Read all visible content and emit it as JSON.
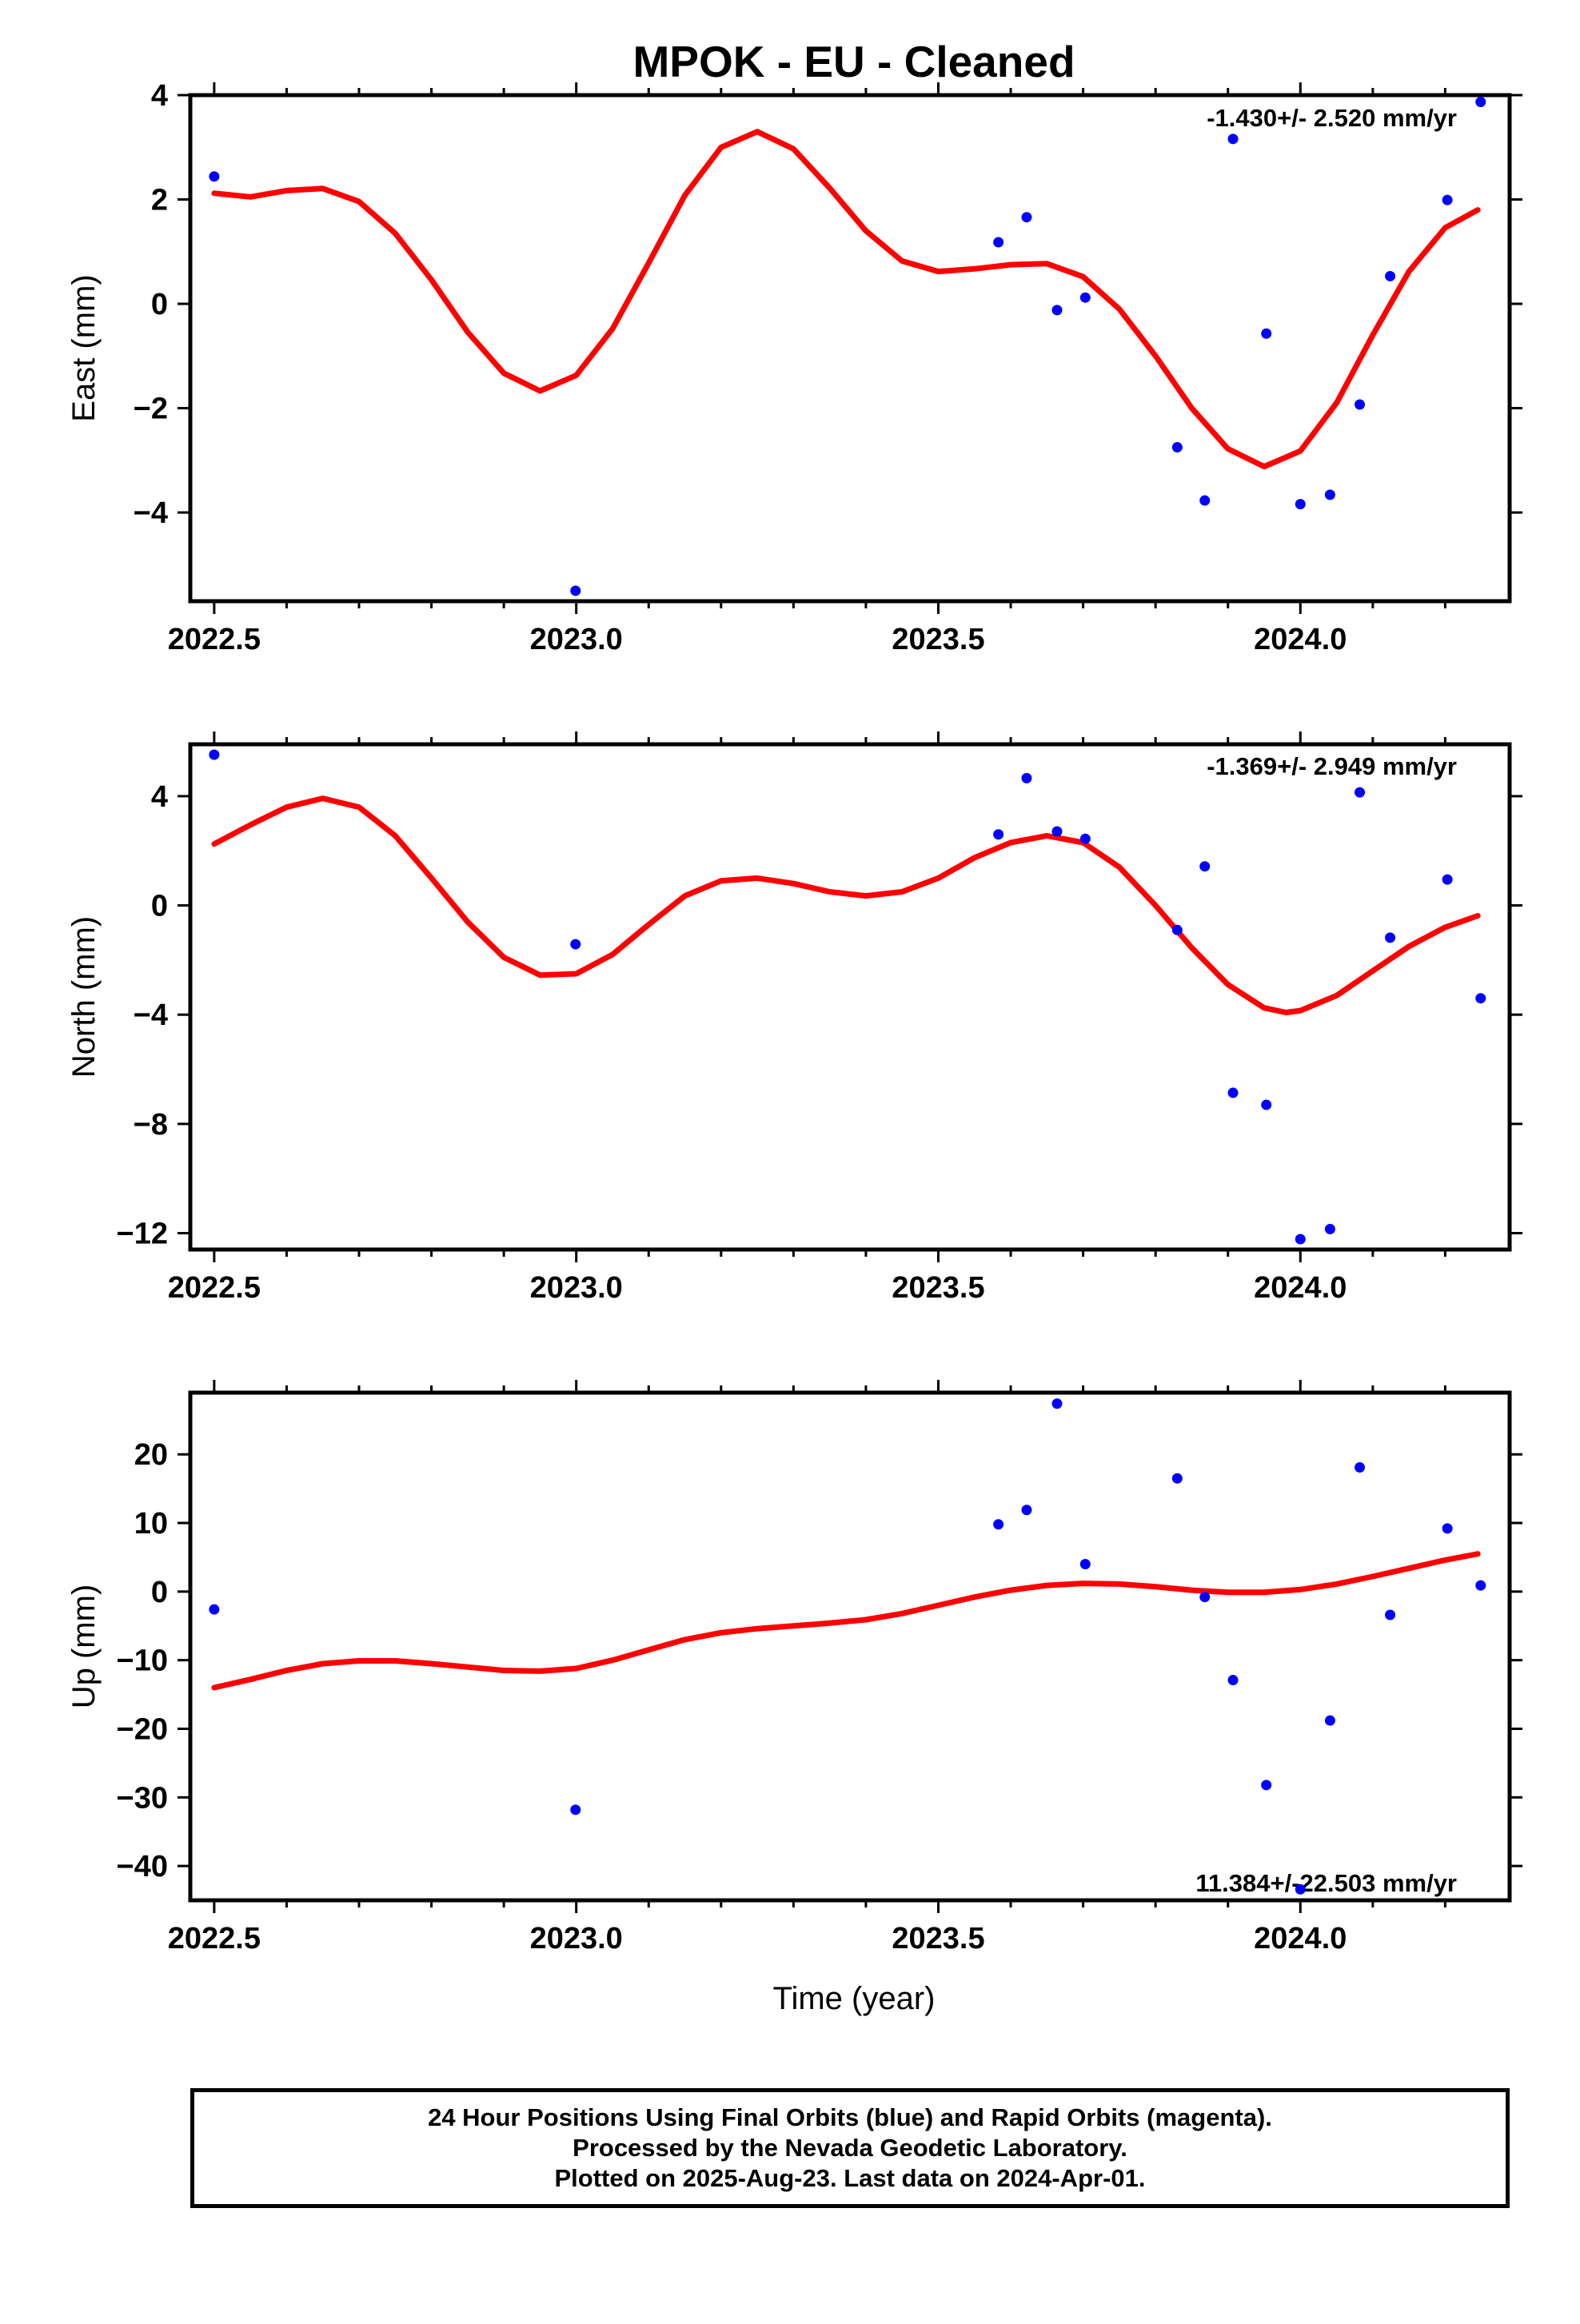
{
  "title": "MPOK  - EU - Cleaned",
  "xlabel": "Time (year)",
  "colors": {
    "points": "#0000ff",
    "fit": "#ff0000",
    "axes": "#000000"
  },
  "footer": {
    "line1": "24 Hour Positions Using Final Orbits (blue) and Rapid Orbits (magenta).",
    "line2": "Processed by the Nevada Geodetic Laboratory.",
    "line3": "Plotted on 2025-Aug-23. Last data on 2024-Apr-01."
  },
  "chart_data": [
    {
      "type": "scatter",
      "ylabel": "East (mm)",
      "rate": "-1.430+/- 2.520 mm/yr",
      "xlim": [
        2022.467,
        2024.289
      ],
      "ylim": [
        -5.7,
        4.0
      ],
      "xticks": [
        2022.5,
        2023.0,
        2023.5,
        2024.0
      ],
      "xtick_labels": [
        "2022.5",
        "2023.0",
        "2023.5",
        "2024.0"
      ],
      "yticks": [
        -4,
        -2,
        0,
        2,
        4
      ],
      "ytick_labels": [
        "−4",
        "−2",
        "0",
        "2",
        "4"
      ],
      "points": [
        [
          2022.5,
          2.44
        ],
        [
          2022.999,
          -5.5
        ],
        [
          2023.583,
          1.18
        ],
        [
          2023.622,
          1.66
        ],
        [
          2023.664,
          -0.12
        ],
        [
          2023.703,
          0.12
        ],
        [
          2023.83,
          -2.75
        ],
        [
          2023.868,
          -3.77
        ],
        [
          2023.907,
          3.16
        ],
        [
          2023.953,
          -0.57
        ],
        [
          2024.0,
          -3.84
        ],
        [
          2024.041,
          -3.66
        ],
        [
          2024.082,
          -1.93
        ],
        [
          2024.124,
          0.53
        ],
        [
          2024.203,
          1.99
        ],
        [
          2024.249,
          3.87
        ]
      ],
      "fit": [
        [
          2022.5,
          2.12
        ],
        [
          2022.55,
          2.05
        ],
        [
          2022.6,
          2.17
        ],
        [
          2022.65,
          2.21
        ],
        [
          2022.7,
          1.96
        ],
        [
          2022.75,
          1.35
        ],
        [
          2022.8,
          0.46
        ],
        [
          2022.85,
          -0.54
        ],
        [
          2022.9,
          -1.33
        ],
        [
          2022.95,
          -1.67
        ],
        [
          2023.0,
          -1.37
        ],
        [
          2023.05,
          -0.48
        ],
        [
          2023.1,
          0.78
        ],
        [
          2023.15,
          2.08
        ],
        [
          2023.2,
          3.0
        ],
        [
          2023.25,
          3.3
        ],
        [
          2023.3,
          2.97
        ],
        [
          2023.35,
          2.22
        ],
        [
          2023.4,
          1.4
        ],
        [
          2023.45,
          0.82
        ],
        [
          2023.5,
          0.62
        ],
        [
          2023.55,
          0.67
        ],
        [
          2023.6,
          0.75
        ],
        [
          2023.65,
          0.77
        ],
        [
          2023.7,
          0.52
        ],
        [
          2023.75,
          -0.1
        ],
        [
          2023.8,
          -1.0
        ],
        [
          2023.85,
          -2.0
        ],
        [
          2023.9,
          -2.78
        ],
        [
          2023.95,
          -3.12
        ],
        [
          2024.0,
          -2.82
        ],
        [
          2024.05,
          -1.9
        ],
        [
          2024.1,
          -0.6
        ],
        [
          2024.15,
          0.62
        ],
        [
          2024.2,
          1.46
        ],
        [
          2024.245,
          1.8
        ]
      ]
    },
    {
      "type": "scatter",
      "ylabel": "North (mm)",
      "rate": "-1.369+/- 2.949 mm/yr",
      "xlim": [
        2022.467,
        2024.289
      ],
      "ylim": [
        -12.6,
        5.9
      ],
      "xticks": [
        2022.5,
        2023.0,
        2023.5,
        2024.0
      ],
      "xtick_labels": [
        "2022.5",
        "2023.0",
        "2023.5",
        "2024.0"
      ],
      "yticks": [
        -12,
        -8,
        -4,
        0,
        4
      ],
      "ytick_labels": [
        "−12",
        "−8",
        "−4",
        "0",
        "4"
      ],
      "points": [
        [
          2022.5,
          5.52
        ],
        [
          2022.999,
          -1.42
        ],
        [
          2023.583,
          2.6
        ],
        [
          2023.622,
          4.66
        ],
        [
          2023.664,
          2.71
        ],
        [
          2023.703,
          2.44
        ],
        [
          2023.83,
          -0.9
        ],
        [
          2023.868,
          1.43
        ],
        [
          2023.907,
          -6.86
        ],
        [
          2023.953,
          -7.3
        ],
        [
          2024.0,
          -12.22
        ],
        [
          2024.041,
          -11.85
        ],
        [
          2024.082,
          4.14
        ],
        [
          2024.124,
          -1.18
        ],
        [
          2024.203,
          0.95
        ],
        [
          2024.249,
          -3.4
        ]
      ],
      "fit": [
        [
          2022.5,
          2.25
        ],
        [
          2022.55,
          2.95
        ],
        [
          2022.6,
          3.6
        ],
        [
          2022.65,
          3.92
        ],
        [
          2022.7,
          3.6
        ],
        [
          2022.75,
          2.55
        ],
        [
          2022.8,
          1.0
        ],
        [
          2022.85,
          -0.6
        ],
        [
          2022.9,
          -1.9
        ],
        [
          2022.95,
          -2.55
        ],
        [
          2023.0,
          -2.5
        ],
        [
          2023.05,
          -1.8
        ],
        [
          2023.1,
          -0.7
        ],
        [
          2023.15,
          0.35
        ],
        [
          2023.2,
          0.9
        ],
        [
          2023.25,
          1.0
        ],
        [
          2023.3,
          0.8
        ],
        [
          2023.35,
          0.5
        ],
        [
          2023.4,
          0.35
        ],
        [
          2023.45,
          0.5
        ],
        [
          2023.5,
          1.0
        ],
        [
          2023.55,
          1.75
        ],
        [
          2023.6,
          2.3
        ],
        [
          2023.65,
          2.55
        ],
        [
          2023.7,
          2.3
        ],
        [
          2023.75,
          1.4
        ],
        [
          2023.8,
          0.0
        ],
        [
          2023.85,
          -1.55
        ],
        [
          2023.9,
          -2.9
        ],
        [
          2023.95,
          -3.75
        ],
        [
          2023.98,
          -3.92
        ],
        [
          2024.0,
          -3.85
        ],
        [
          2024.05,
          -3.3
        ],
        [
          2024.1,
          -2.4
        ],
        [
          2024.15,
          -1.5
        ],
        [
          2024.2,
          -0.8
        ],
        [
          2024.245,
          -0.38
        ]
      ]
    },
    {
      "type": "scatter",
      "ylabel": "Up (mm)",
      "rate": "11.384+/-22.503 mm/yr",
      "xlim": [
        2022.467,
        2024.289
      ],
      "ylim": [
        -45.0,
        29.0
      ],
      "xticks": [
        2022.5,
        2023.0,
        2023.5,
        2024.0
      ],
      "xtick_labels": [
        "2022.5",
        "2023.0",
        "2023.5",
        "2024.0"
      ],
      "yticks": [
        -40,
        -30,
        -20,
        -10,
        0,
        10,
        20
      ],
      "ytick_labels": [
        "−40",
        "−30",
        "−20",
        "−10",
        "0",
        "10",
        "20"
      ],
      "points": [
        [
          2022.5,
          -2.6
        ],
        [
          2022.999,
          -31.8
        ],
        [
          2023.583,
          9.8
        ],
        [
          2023.622,
          11.9
        ],
        [
          2023.664,
          27.4
        ],
        [
          2023.703,
          4.0
        ],
        [
          2023.83,
          16.5
        ],
        [
          2023.868,
          -0.8
        ],
        [
          2023.907,
          -12.9
        ],
        [
          2023.953,
          -28.2
        ],
        [
          2024.0,
          -43.4
        ],
        [
          2024.041,
          -18.8
        ],
        [
          2024.082,
          18.1
        ],
        [
          2024.124,
          -3.4
        ],
        [
          2024.203,
          9.2
        ],
        [
          2024.249,
          0.9
        ]
      ],
      "fit": [
        [
          2022.5,
          -14.0
        ],
        [
          2022.55,
          -12.8
        ],
        [
          2022.6,
          -11.5
        ],
        [
          2022.65,
          -10.5
        ],
        [
          2022.7,
          -10.1
        ],
        [
          2022.75,
          -10.1
        ],
        [
          2022.8,
          -10.5
        ],
        [
          2022.85,
          -11.0
        ],
        [
          2022.9,
          -11.5
        ],
        [
          2022.95,
          -11.6
        ],
        [
          2023.0,
          -11.2
        ],
        [
          2023.05,
          -10.0
        ],
        [
          2023.1,
          -8.5
        ],
        [
          2023.15,
          -7.0
        ],
        [
          2023.2,
          -6.0
        ],
        [
          2023.25,
          -5.4
        ],
        [
          2023.3,
          -5.0
        ],
        [
          2023.35,
          -4.6
        ],
        [
          2023.4,
          -4.1
        ],
        [
          2023.45,
          -3.2
        ],
        [
          2023.5,
          -2.0
        ],
        [
          2023.55,
          -0.8
        ],
        [
          2023.6,
          0.2
        ],
        [
          2023.65,
          0.9
        ],
        [
          2023.7,
          1.2
        ],
        [
          2023.75,
          1.1
        ],
        [
          2023.8,
          0.7
        ],
        [
          2023.85,
          0.2
        ],
        [
          2023.9,
          -0.1
        ],
        [
          2023.95,
          -0.1
        ],
        [
          2024.0,
          0.3
        ],
        [
          2024.05,
          1.1
        ],
        [
          2024.1,
          2.2
        ],
        [
          2024.15,
          3.4
        ],
        [
          2024.2,
          4.6
        ],
        [
          2024.245,
          5.5
        ]
      ]
    }
  ]
}
